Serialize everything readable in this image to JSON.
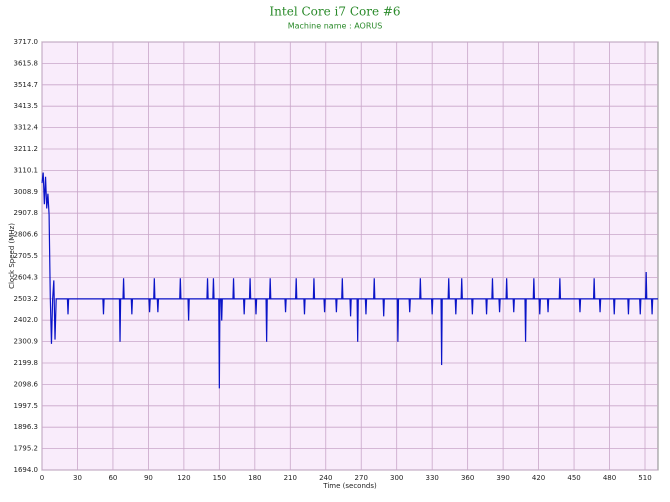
{
  "chart_data": {
    "type": "line",
    "title": "Intel Core i7 Core #6",
    "subtitle": "Machine name : AORUS",
    "xlabel": "Time (seconds)",
    "ylabel": "Clock Speed (MHz)",
    "color": "#0a14c8",
    "grid": true,
    "xlim": [
      0,
      521
    ],
    "ylim": [
      1694,
      3717
    ],
    "xticks": [
      0,
      30,
      60,
      90,
      120,
      150,
      180,
      210,
      240,
      270,
      300,
      330,
      360,
      390,
      420,
      450,
      480,
      510
    ],
    "yticks": [
      {
        "value": 1694,
        "label": "1694.0"
      },
      1795.2,
      1896.3,
      1997.5,
      2098.6,
      2199.8,
      2300.9,
      {
        "value": 2402,
        "label": "2402.0"
      },
      2503.2,
      2604.3,
      2705.5,
      2806.6,
      2907.8,
      3008.9,
      3110.1,
      3211.2,
      3312.4,
      3413.5,
      3514.7,
      3615.8,
      {
        "value": 3717,
        "label": "3717.0"
      }
    ],
    "x": [
      0,
      1,
      2,
      3,
      4,
      5,
      6,
      7,
      8,
      9,
      10,
      11,
      12,
      21.5,
      22,
      22.5,
      51.5,
      52,
      52.5,
      65.5,
      66,
      66.5,
      68.5,
      69,
      69.5,
      75.5,
      76,
      76.5,
      90.5,
      91,
      91.5,
      94.5,
      95,
      95.5,
      97.5,
      98,
      98.5,
      116.5,
      117,
      117.5,
      123.5,
      124,
      124.5,
      139.5,
      140,
      140.5,
      144.5,
      145,
      145.5,
      149.5,
      150,
      150.5,
      151.5,
      152,
      152.5,
      161.5,
      162,
      162.5,
      170.5,
      171,
      171.5,
      175.5,
      176,
      176.5,
      180.5,
      181,
      181.5,
      189.5,
      190,
      190.5,
      192.5,
      193,
      193.5,
      205.5,
      206,
      206.5,
      214.5,
      215,
      215.5,
      221.5,
      222,
      222.5,
      229.5,
      230,
      230.5,
      238.5,
      239,
      239.5,
      248.5,
      249,
      249.5,
      253.5,
      254,
      254.5,
      260.5,
      261,
      261.5,
      266.5,
      267,
      267.5,
      273.5,
      274,
      274.5,
      280.5,
      281,
      281.5,
      288.5,
      289,
      289.5,
      300.5,
      301,
      301.5,
      310.5,
      311,
      311.5,
      319.5,
      320,
      320.5,
      329.5,
      330,
      330.5,
      337.5,
      338,
      338.5,
      343.5,
      344,
      344.5,
      349.5,
      350,
      350.5,
      354.5,
      355,
      355.5,
      363.5,
      364,
      364.5,
      375.5,
      376,
      376.5,
      380.5,
      381,
      381.5,
      386.5,
      387,
      387.5,
      392.5,
      393,
      393.5,
      398.5,
      399,
      399.5,
      408.5,
      409,
      409.5,
      415.5,
      416,
      416.5,
      420.5,
      421,
      421.5,
      427.5,
      428,
      428.5,
      437.5,
      438,
      438.5,
      454.5,
      455,
      455.5,
      466.5,
      467,
      467.5,
      471.5,
      472,
      472.5,
      483.5,
      484,
      484.5,
      495.5,
      496,
      496.5,
      505.5,
      506,
      506.5,
      510.5,
      511,
      511.5,
      515.5,
      516,
      516.5,
      521
    ],
    "values": [
      3050,
      3100,
      2950,
      3080,
      2930,
      3000,
      2900,
      2510,
      2290,
      2503,
      2590,
      2310,
      2503,
      2503,
      2430,
      2503,
      2503,
      2430,
      2503,
      2503,
      2300,
      2503,
      2503,
      2600,
      2503,
      2503,
      2430,
      2503,
      2503,
      2440,
      2503,
      2503,
      2600,
      2503,
      2503,
      2440,
      2503,
      2503,
      2600,
      2503,
      2503,
      2400,
      2503,
      2503,
      2600,
      2503,
      2503,
      2600,
      2503,
      2503,
      2080,
      2503,
      2503,
      2400,
      2503,
      2503,
      2600,
      2503,
      2503,
      2430,
      2503,
      2503,
      2600,
      2503,
      2503,
      2430,
      2503,
      2503,
      2300,
      2503,
      2503,
      2600,
      2503,
      2503,
      2440,
      2503,
      2503,
      2600,
      2503,
      2503,
      2430,
      2503,
      2503,
      2600,
      2503,
      2503,
      2440,
      2503,
      2503,
      2440,
      2503,
      2503,
      2600,
      2503,
      2503,
      2420,
      2503,
      2503,
      2300,
      2503,
      2503,
      2430,
      2503,
      2503,
      2600,
      2503,
      2503,
      2420,
      2503,
      2503,
      2300,
      2503,
      2503,
      2440,
      2503,
      2503,
      2600,
      2503,
      2503,
      2430,
      2503,
      2503,
      2190,
      2503,
      2503,
      2600,
      2503,
      2503,
      2430,
      2503,
      2503,
      2600,
      2503,
      2503,
      2430,
      2503,
      2503,
      2430,
      2503,
      2503,
      2600,
      2503,
      2503,
      2440,
      2503,
      2503,
      2600,
      2503,
      2503,
      2440,
      2503,
      2503,
      2300,
      2503,
      2503,
      2600,
      2503,
      2503,
      2430,
      2503,
      2503,
      2440,
      2503,
      2503,
      2600,
      2503,
      2503,
      2440,
      2503,
      2503,
      2600,
      2503,
      2503,
      2440,
      2503,
      2503,
      2430,
      2503,
      2503,
      2430,
      2503,
      2503,
      2430,
      2503,
      2503,
      2630,
      2503,
      2503,
      2430,
      2503,
      2503
    ]
  }
}
